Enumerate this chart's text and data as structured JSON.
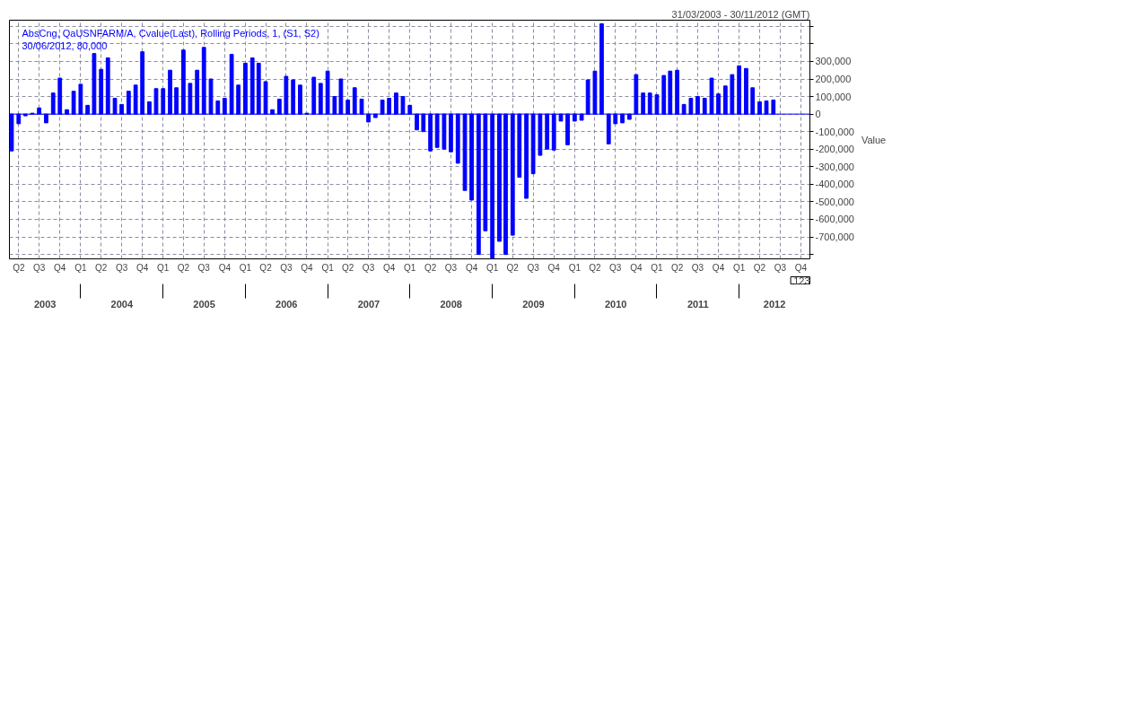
{
  "chart_data": {
    "type": "bar",
    "title": "AbsCng, QaUSNFARM/A, Cvalue(Last), Rolling Periods, 1, (S1, S2)",
    "subtitle": "31/03/2003 - 30/11/2012 (GMT)",
    "ylabel": "Value",
    "x": [
      "2003-03",
      "2003-04",
      "2003-05",
      "2003-06",
      "2003-07",
      "2003-08",
      "2003-09",
      "2003-10",
      "2003-11",
      "2003-12",
      "2004-01",
      "2004-02",
      "2004-03",
      "2004-04",
      "2004-05",
      "2004-06",
      "2004-07",
      "2004-08",
      "2004-09",
      "2004-10",
      "2004-11",
      "2004-12",
      "2005-01",
      "2005-02",
      "2005-03",
      "2005-04",
      "2005-05",
      "2005-06",
      "2005-07",
      "2005-08",
      "2005-09",
      "2005-10",
      "2005-11",
      "2005-12",
      "2006-01",
      "2006-02",
      "2006-03",
      "2006-04",
      "2006-05",
      "2006-06",
      "2006-07",
      "2006-08",
      "2006-09",
      "2006-10",
      "2006-11",
      "2006-12",
      "2007-01",
      "2007-02",
      "2007-03",
      "2007-04",
      "2007-05",
      "2007-06",
      "2007-07",
      "2007-08",
      "2007-09",
      "2007-10",
      "2007-11",
      "2007-12",
      "2008-01",
      "2008-02",
      "2008-03",
      "2008-04",
      "2008-05",
      "2008-06",
      "2008-07",
      "2008-08",
      "2008-09",
      "2008-10",
      "2008-11",
      "2008-12",
      "2009-01",
      "2009-02",
      "2009-03",
      "2009-04",
      "2009-05",
      "2009-06",
      "2009-07",
      "2009-08",
      "2009-09",
      "2009-10",
      "2009-11",
      "2009-12",
      "2010-01",
      "2010-02",
      "2010-03",
      "2010-04",
      "2010-05",
      "2010-06",
      "2010-07",
      "2010-08",
      "2010-09",
      "2010-10",
      "2010-11",
      "2010-12",
      "2011-01",
      "2011-02",
      "2011-03",
      "2011-04",
      "2011-05",
      "2011-06",
      "2011-07",
      "2011-08",
      "2011-09",
      "2011-10",
      "2011-11",
      "2011-12",
      "2012-01",
      "2012-02",
      "2012-03",
      "2012-04",
      "2012-05",
      "2012-06"
    ],
    "series": [
      {
        "color": "#0000ff",
        "values": [
          -210000,
          -55000,
          -10000,
          5000,
          35000,
          -50000,
          120000,
          205000,
          25000,
          130000,
          170000,
          50000,
          345000,
          255000,
          320000,
          90000,
          55000,
          130000,
          165000,
          355000,
          70000,
          145000,
          145000,
          250000,
          150000,
          365000,
          175000,
          250000,
          380000,
          200000,
          75000,
          90000,
          340000,
          165000,
          290000,
          320000,
          290000,
          185000,
          25000,
          85000,
          215000,
          195000,
          165000,
          5000,
          210000,
          175000,
          245000,
          100000,
          200000,
          80000,
          150000,
          85000,
          -45000,
          -20000,
          80000,
          90000,
          120000,
          100000,
          50000,
          -90000,
          -100000,
          -210000,
          -190000,
          -200000,
          -215000,
          -280000,
          -435000,
          -490000,
          -800000,
          -665000,
          -820000,
          -725000,
          -800000,
          -690000,
          -360000,
          -480000,
          -340000,
          -235000,
          -200000,
          -205000,
          -40000,
          -175000,
          -40000,
          -35000,
          195000,
          245000,
          515000,
          -170000,
          -55000,
          -50000,
          -30000,
          225000,
          120000,
          120000,
          110000,
          220000,
          245000,
          250000,
          55000,
          90000,
          100000,
          90000,
          205000,
          115000,
          160000,
          225000,
          275000,
          260000,
          150000,
          70000,
          75000,
          80000
        ]
      }
    ],
    "xlim": [
      "2003-02-19",
      "2012-11-10"
    ],
    "xticks": [
      {
        "value": "2003-04",
        "label": "Q2"
      },
      {
        "value": "2003-07",
        "label": "Q3"
      },
      {
        "value": "2003-10",
        "label": "Q4"
      },
      {
        "value": "2004-01",
        "label": "Q1"
      },
      {
        "value": "2004-04",
        "label": "Q2"
      },
      {
        "value": "2004-07",
        "label": "Q3"
      },
      {
        "value": "2004-10",
        "label": "Q4"
      },
      {
        "value": "2005-01",
        "label": "Q1"
      },
      {
        "value": "2005-04",
        "label": "Q2"
      },
      {
        "value": "2005-07",
        "label": "Q3"
      },
      {
        "value": "2005-10",
        "label": "Q4"
      },
      {
        "value": "2006-01",
        "label": "Q1"
      },
      {
        "value": "2006-04",
        "label": "Q2"
      },
      {
        "value": "2006-07",
        "label": "Q3"
      },
      {
        "value": "2006-10",
        "label": "Q4"
      },
      {
        "value": "2007-01",
        "label": "Q1"
      },
      {
        "value": "2007-04",
        "label": "Q2"
      },
      {
        "value": "2007-07",
        "label": "Q3"
      },
      {
        "value": "2007-10",
        "label": "Q4"
      },
      {
        "value": "2008-01",
        "label": "Q1"
      },
      {
        "value": "2008-04",
        "label": "Q2"
      },
      {
        "value": "2008-07",
        "label": "Q3"
      },
      {
        "value": "2008-10",
        "label": "Q4"
      },
      {
        "value": "2009-01",
        "label": "Q1"
      },
      {
        "value": "2009-04",
        "label": "Q2"
      },
      {
        "value": "2009-07",
        "label": "Q3"
      },
      {
        "value": "2009-10",
        "label": "Q4"
      },
      {
        "value": "2010-01",
        "label": "Q1"
      },
      {
        "value": "2010-04",
        "label": "Q2"
      },
      {
        "value": "2010-07",
        "label": "Q3"
      },
      {
        "value": "2010-10",
        "label": "Q4"
      },
      {
        "value": "2011-01",
        "label": "Q1"
      },
      {
        "value": "2011-04",
        "label": "Q2"
      },
      {
        "value": "2011-07",
        "label": "Q3"
      },
      {
        "value": "2011-10",
        "label": "Q4"
      },
      {
        "value": "2012-01",
        "label": "Q1"
      },
      {
        "value": "2012-04",
        "label": "Q2"
      },
      {
        "value": "2012-07",
        "label": "Q3"
      },
      {
        "value": "2012-10",
        "label": "Q4"
      }
    ],
    "ylim": [
      -825000,
      535000
    ],
    "yticks": [
      {
        "value": -800000,
        "label": null
      },
      {
        "value": -700000,
        "label": "-700,000"
      },
      {
        "value": -600000,
        "label": "-600,000"
      },
      {
        "value": -500000,
        "label": "-500,000"
      },
      {
        "value": -400000,
        "label": "-400,000"
      },
      {
        "value": -300000,
        "label": "-300,000"
      },
      {
        "value": -200000,
        "label": "-200,000"
      },
      {
        "value": -100000,
        "label": "-100,000"
      },
      {
        "value": 0,
        "label": "0"
      },
      {
        "value": 100000,
        "label": "100,000"
      },
      {
        "value": 200000,
        "label": "200,000"
      },
      {
        "value": 300000,
        "label": "300,000"
      },
      {
        "value": 400000,
        "label": null
      },
      {
        "value": 500000,
        "label": null
      }
    ],
    "ref_lines": [
      {
        "axis": "y",
        "value": 0,
        "color": "#0000ff"
      }
    ],
    "annotations": [
      "30/06/2012, 80,000",
      "2003",
      "2004",
      "2005",
      "2006",
      "2007",
      "2008",
      "2009",
      "2010",
      "2011",
      "2012",
      ".123"
    ],
    "grid": true
  }
}
